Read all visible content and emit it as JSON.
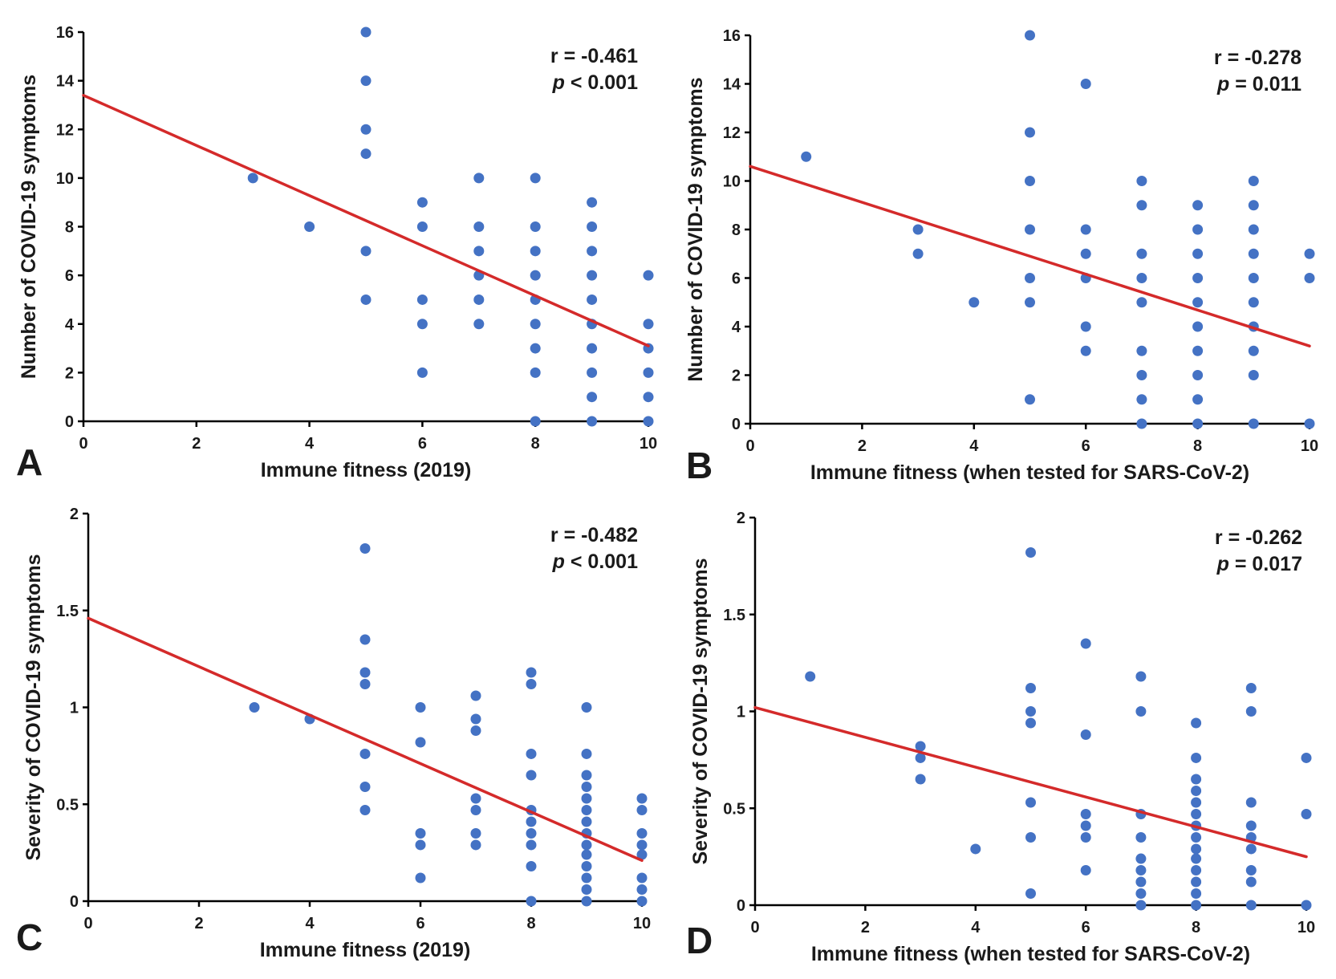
{
  "colors": {
    "point": "#4472c4",
    "trendline": "#d42a2a",
    "axis": "#000000"
  },
  "chart_data": [
    {
      "panel": "A",
      "type": "scatter",
      "xlabel": "Immune fitness (2019)",
      "ylabel": "Number of COVID-19 symptoms",
      "xlim": [
        0,
        10
      ],
      "ylim": [
        0,
        16
      ],
      "xticks": [
        "0",
        "2",
        "4",
        "6",
        "8",
        "10"
      ],
      "yticks": [
        "0",
        "2",
        "4",
        "6",
        "8",
        "10",
        "12",
        "14",
        "16"
      ],
      "stat_r": "r = -0.461",
      "stat_p_symbol": "p",
      "stat_p_rest": " < 0.001",
      "trendline": {
        "x": [
          0,
          10
        ],
        "y": [
          13.4,
          3.1
        ]
      },
      "points": [
        [
          3,
          10
        ],
        [
          4,
          8
        ],
        [
          5,
          16
        ],
        [
          5,
          14
        ],
        [
          5,
          12
        ],
        [
          5,
          11
        ],
        [
          5,
          7
        ],
        [
          5,
          5
        ],
        [
          6,
          9
        ],
        [
          6,
          8
        ],
        [
          6,
          5
        ],
        [
          6,
          4
        ],
        [
          6,
          2
        ],
        [
          7,
          10
        ],
        [
          7,
          8
        ],
        [
          7,
          7
        ],
        [
          7,
          6
        ],
        [
          7,
          5
        ],
        [
          7,
          4
        ],
        [
          8,
          10
        ],
        [
          8,
          8
        ],
        [
          8,
          7
        ],
        [
          8,
          6
        ],
        [
          8,
          5
        ],
        [
          8,
          4
        ],
        [
          8,
          3
        ],
        [
          8,
          2
        ],
        [
          8,
          0
        ],
        [
          9,
          9
        ],
        [
          9,
          8
        ],
        [
          9,
          7
        ],
        [
          9,
          6
        ],
        [
          9,
          5
        ],
        [
          9,
          4
        ],
        [
          9,
          3
        ],
        [
          9,
          2
        ],
        [
          9,
          1
        ],
        [
          9,
          0
        ],
        [
          10,
          6
        ],
        [
          10,
          4
        ],
        [
          10,
          3
        ],
        [
          10,
          2
        ],
        [
          10,
          1
        ],
        [
          10,
          0
        ]
      ]
    },
    {
      "panel": "B",
      "type": "scatter",
      "xlabel": "Immune fitness (when tested for SARS-CoV-2)",
      "ylabel": "Number of COVID-19 symptoms",
      "xlim": [
        0,
        10
      ],
      "ylim": [
        0,
        16
      ],
      "xticks": [
        "0",
        "2",
        "4",
        "6",
        "8",
        "10"
      ],
      "yticks": [
        "0",
        "2",
        "4",
        "6",
        "8",
        "10",
        "12",
        "14",
        "16"
      ],
      "stat_r": "r = -0.278",
      "stat_p_symbol": "p",
      "stat_p_rest": " = 0.011",
      "trendline": {
        "x": [
          0,
          10
        ],
        "y": [
          10.6,
          3.2
        ]
      },
      "points": [
        [
          1,
          11
        ],
        [
          3,
          8
        ],
        [
          3,
          7
        ],
        [
          4,
          5
        ],
        [
          5,
          16
        ],
        [
          5,
          12
        ],
        [
          5,
          10
        ],
        [
          5,
          8
        ],
        [
          5,
          6
        ],
        [
          5,
          5
        ],
        [
          5,
          1
        ],
        [
          6,
          14
        ],
        [
          6,
          8
        ],
        [
          6,
          7
        ],
        [
          6,
          6
        ],
        [
          6,
          4
        ],
        [
          6,
          3
        ],
        [
          7,
          10
        ],
        [
          7,
          9
        ],
        [
          7,
          7
        ],
        [
          7,
          6
        ],
        [
          7,
          5
        ],
        [
          7,
          3
        ],
        [
          7,
          2
        ],
        [
          7,
          1
        ],
        [
          7,
          0
        ],
        [
          8,
          9
        ],
        [
          8,
          8
        ],
        [
          8,
          7
        ],
        [
          8,
          6
        ],
        [
          8,
          5
        ],
        [
          8,
          4
        ],
        [
          8,
          3
        ],
        [
          8,
          2
        ],
        [
          8,
          1
        ],
        [
          8,
          0
        ],
        [
          9,
          10
        ],
        [
          9,
          9
        ],
        [
          9,
          8
        ],
        [
          9,
          7
        ],
        [
          9,
          6
        ],
        [
          9,
          5
        ],
        [
          9,
          4
        ],
        [
          9,
          3
        ],
        [
          9,
          2
        ],
        [
          9,
          0
        ],
        [
          10,
          7
        ],
        [
          10,
          6
        ],
        [
          10,
          0
        ]
      ]
    },
    {
      "panel": "C",
      "type": "scatter",
      "xlabel": "Immune fitness (2019)",
      "ylabel": "Severity of COVID-19 symptoms",
      "xlim": [
        0,
        10
      ],
      "ylim": [
        0,
        2
      ],
      "xticks": [
        "0",
        "2",
        "4",
        "6",
        "8",
        "10"
      ],
      "yticks": [
        "0",
        "0.5",
        "1",
        "1.5",
        "2"
      ],
      "stat_r": "r = -0.482",
      "stat_p_symbol": "p",
      "stat_p_rest": " < 0.001",
      "trendline": {
        "x": [
          0,
          10
        ],
        "y": [
          1.46,
          0.21
        ]
      },
      "points": [
        [
          3,
          1.0
        ],
        [
          4,
          0.94
        ],
        [
          5,
          1.82
        ],
        [
          5,
          1.35
        ],
        [
          5,
          1.18
        ],
        [
          5,
          1.12
        ],
        [
          5,
          0.76
        ],
        [
          5,
          0.59
        ],
        [
          5,
          0.47
        ],
        [
          6,
          1.0
        ],
        [
          6,
          0.82
        ],
        [
          6,
          0.35
        ],
        [
          6,
          0.29
        ],
        [
          6,
          0.12
        ],
        [
          7,
          1.06
        ],
        [
          7,
          0.94
        ],
        [
          7,
          0.88
        ],
        [
          7,
          0.53
        ],
        [
          7,
          0.47
        ],
        [
          7,
          0.35
        ],
        [
          7,
          0.29
        ],
        [
          8,
          1.18
        ],
        [
          8,
          1.12
        ],
        [
          8,
          0.76
        ],
        [
          8,
          0.65
        ],
        [
          8,
          0.47
        ],
        [
          8,
          0.41
        ],
        [
          8,
          0.35
        ],
        [
          8,
          0.29
        ],
        [
          8,
          0.18
        ],
        [
          8,
          0.0
        ],
        [
          9,
          1.0
        ],
        [
          9,
          0.76
        ],
        [
          9,
          0.65
        ],
        [
          9,
          0.59
        ],
        [
          9,
          0.53
        ],
        [
          9,
          0.47
        ],
        [
          9,
          0.41
        ],
        [
          9,
          0.35
        ],
        [
          9,
          0.29
        ],
        [
          9,
          0.24
        ],
        [
          9,
          0.18
        ],
        [
          9,
          0.12
        ],
        [
          9,
          0.06
        ],
        [
          9,
          0.0
        ],
        [
          10,
          0.53
        ],
        [
          10,
          0.47
        ],
        [
          10,
          0.35
        ],
        [
          10,
          0.29
        ],
        [
          10,
          0.24
        ],
        [
          10,
          0.12
        ],
        [
          10,
          0.06
        ],
        [
          10,
          0.0
        ]
      ]
    },
    {
      "panel": "D",
      "type": "scatter",
      "xlabel": "Immune fitness (when tested for SARS-CoV-2)",
      "ylabel": "Severity of COVID-19 symptoms",
      "xlim": [
        0,
        10
      ],
      "ylim": [
        0,
        2
      ],
      "xticks": [
        "0",
        "2",
        "4",
        "6",
        "8",
        "10"
      ],
      "yticks": [
        "0",
        "0.5",
        "1",
        "1.5",
        "2"
      ],
      "stat_r": "r = -0.262",
      "stat_p_symbol": "p",
      "stat_p_rest": " = 0.017",
      "trendline": {
        "x": [
          0,
          10
        ],
        "y": [
          1.02,
          0.25
        ]
      },
      "points": [
        [
          1,
          1.18
        ],
        [
          3,
          0.82
        ],
        [
          3,
          0.76
        ],
        [
          3,
          0.65
        ],
        [
          4,
          0.29
        ],
        [
          5,
          1.82
        ],
        [
          5,
          1.12
        ],
        [
          5,
          1.0
        ],
        [
          5,
          0.94
        ],
        [
          5,
          0.53
        ],
        [
          5,
          0.35
        ],
        [
          5,
          0.06
        ],
        [
          6,
          1.35
        ],
        [
          6,
          0.88
        ],
        [
          6,
          0.47
        ],
        [
          6,
          0.41
        ],
        [
          6,
          0.35
        ],
        [
          6,
          0.18
        ],
        [
          7,
          1.18
        ],
        [
          7,
          1.0
        ],
        [
          7,
          0.47
        ],
        [
          7,
          0.35
        ],
        [
          7,
          0.24
        ],
        [
          7,
          0.18
        ],
        [
          7,
          0.12
        ],
        [
          7,
          0.06
        ],
        [
          7,
          0.0
        ],
        [
          8,
          0.94
        ],
        [
          8,
          0.76
        ],
        [
          8,
          0.65
        ],
        [
          8,
          0.59
        ],
        [
          8,
          0.53
        ],
        [
          8,
          0.47
        ],
        [
          8,
          0.41
        ],
        [
          8,
          0.35
        ],
        [
          8,
          0.29
        ],
        [
          8,
          0.24
        ],
        [
          8,
          0.18
        ],
        [
          8,
          0.12
        ],
        [
          8,
          0.06
        ],
        [
          8,
          0.0
        ],
        [
          9,
          1.12
        ],
        [
          9,
          1.0
        ],
        [
          9,
          0.53
        ],
        [
          9,
          0.41
        ],
        [
          9,
          0.35
        ],
        [
          9,
          0.29
        ],
        [
          9,
          0.18
        ],
        [
          9,
          0.12
        ],
        [
          9,
          0.0
        ],
        [
          10,
          0.76
        ],
        [
          10,
          0.47
        ],
        [
          10,
          0.0
        ]
      ]
    }
  ]
}
